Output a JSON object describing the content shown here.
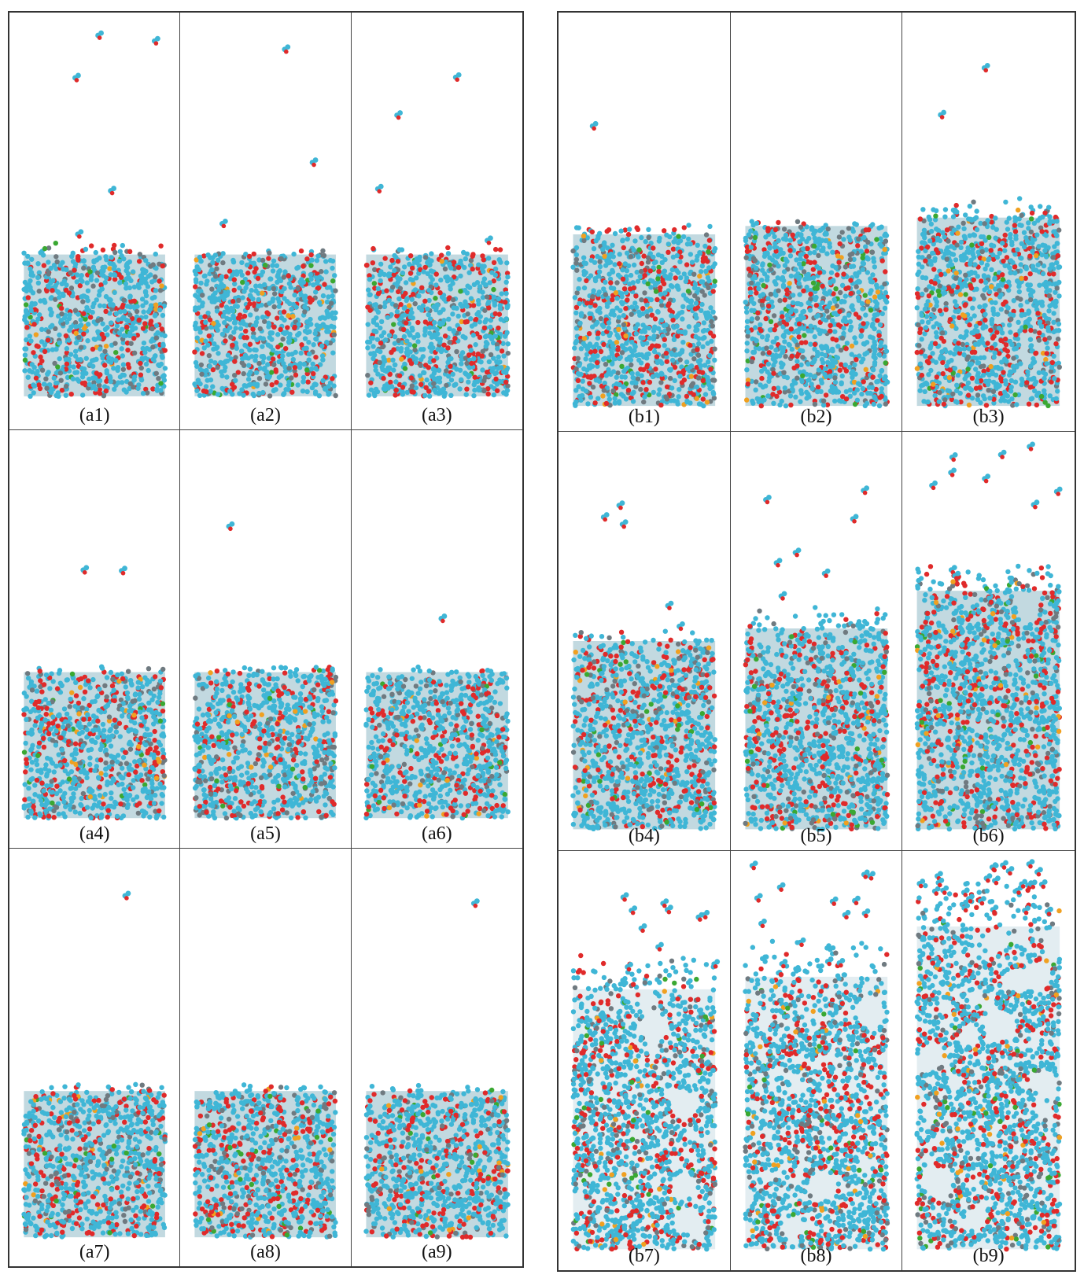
{
  "figure": {
    "groups": [
      {
        "id": "a",
        "panels": [
          {
            "label": "(a1)",
            "slab_top": 0.58,
            "slab_bottom": 0.92,
            "roughness": 0.03,
            "voids": 0.0,
            "vapor": 5
          },
          {
            "label": "(a2)",
            "slab_top": 0.58,
            "slab_bottom": 0.92,
            "roughness": 0.02,
            "voids": 0.0,
            "vapor": 3
          },
          {
            "label": "(a3)",
            "slab_top": 0.58,
            "slab_bottom": 0.92,
            "roughness": 0.02,
            "voids": 0.0,
            "vapor": 4
          },
          {
            "label": "(a4)",
            "slab_top": 0.58,
            "slab_bottom": 0.93,
            "roughness": 0.02,
            "voids": 0.0,
            "vapor": 2
          },
          {
            "label": "(a5)",
            "slab_top": 0.58,
            "slab_bottom": 0.93,
            "roughness": 0.02,
            "voids": 0.0,
            "vapor": 1
          },
          {
            "label": "(a6)",
            "slab_top": 0.58,
            "slab_bottom": 0.93,
            "roughness": 0.02,
            "voids": 0.0,
            "vapor": 1
          },
          {
            "label": "(a7)",
            "slab_top": 0.58,
            "slab_bottom": 0.93,
            "roughness": 0.02,
            "voids": 0.0,
            "vapor": 1
          },
          {
            "label": "(a8)",
            "slab_top": 0.58,
            "slab_bottom": 0.93,
            "roughness": 0.02,
            "voids": 0.0,
            "vapor": 0
          },
          {
            "label": "(a9)",
            "slab_top": 0.58,
            "slab_bottom": 0.93,
            "roughness": 0.02,
            "voids": 0.0,
            "vapor": 1
          }
        ]
      },
      {
        "id": "b",
        "panels": [
          {
            "label": "(b1)",
            "slab_top": 0.53,
            "slab_bottom": 0.94,
            "roughness": 0.04,
            "voids": 0.0,
            "vapor": 1
          },
          {
            "label": "(b2)",
            "slab_top": 0.51,
            "slab_bottom": 0.94,
            "roughness": 0.02,
            "voids": 0.0,
            "vapor": 0
          },
          {
            "label": "(b3)",
            "slab_top": 0.49,
            "slab_bottom": 0.94,
            "roughness": 0.05,
            "voids": 0.0,
            "vapor": 2
          },
          {
            "label": "(b4)",
            "slab_top": 0.5,
            "slab_bottom": 0.95,
            "roughness": 0.03,
            "voids": 0.0,
            "vapor": 5
          },
          {
            "label": "(b5)",
            "slab_top": 0.47,
            "slab_bottom": 0.95,
            "roughness": 0.06,
            "voids": 0.02,
            "vapor": 7
          },
          {
            "label": "(b6)",
            "slab_top": 0.38,
            "slab_bottom": 0.95,
            "roughness": 0.08,
            "voids": 0.03,
            "vapor": 10
          },
          {
            "label": "(b7)",
            "slab_top": 0.33,
            "slab_bottom": 0.95,
            "roughness": 0.09,
            "voids": 0.08,
            "vapor": 10
          },
          {
            "label": "(b8)",
            "slab_top": 0.3,
            "slab_bottom": 0.95,
            "roughness": 0.1,
            "voids": 0.14,
            "vapor": 14
          },
          {
            "label": "(b9)",
            "slab_top": 0.18,
            "slab_bottom": 0.95,
            "roughness": 0.12,
            "voids": 0.25,
            "vapor": 26
          }
        ]
      }
    ],
    "colors": {
      "cyan": "#3fb6d6",
      "red": "#e02a2a",
      "gray": "#6f7a80",
      "green": "#3aa832",
      "orange": "#f0a020",
      "border": "#333333"
    }
  }
}
